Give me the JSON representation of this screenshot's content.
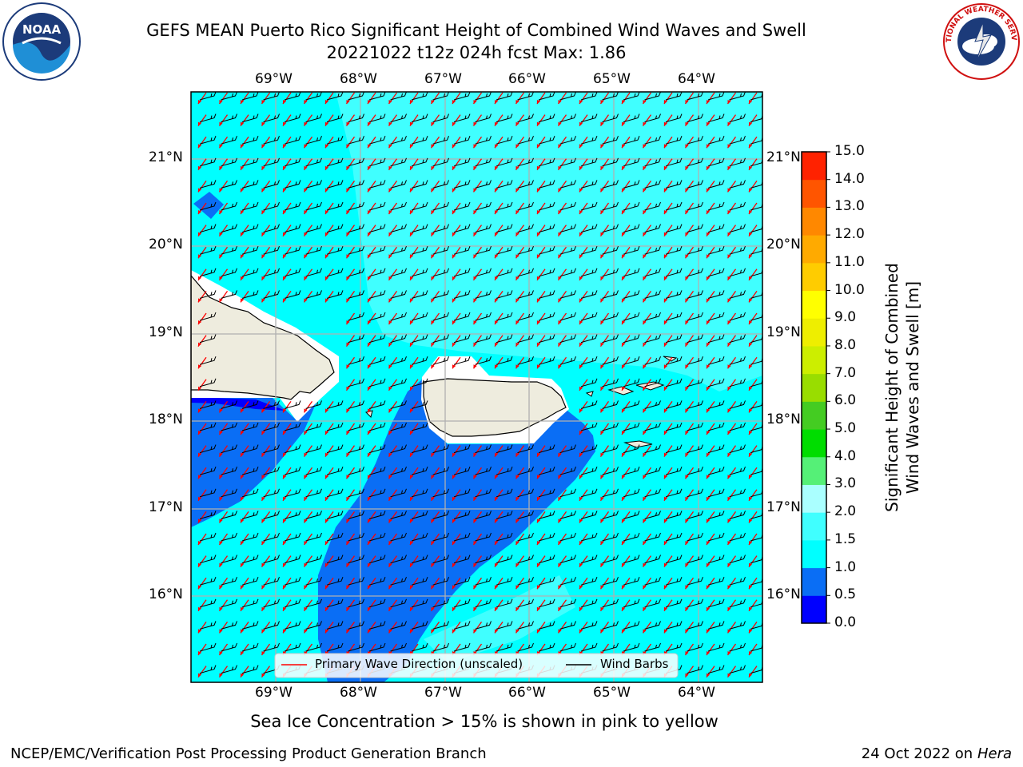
{
  "title_line1": "GEFS MEAN Puerto Rico Significant Height of Combined Wind Waves and Swell",
  "title_line2": "20221022 t12z 024h fcst   Max: 1.86",
  "logos": {
    "left_icon": "noaa-logo",
    "right_icon": "nws-logo",
    "noaa_text": "NOAA",
    "nws_text": "NATIONAL WEATHER SERVICE"
  },
  "lon_labels": [
    "69°W",
    "68°W",
    "67°W",
    "66°W",
    "65°W",
    "64°W"
  ],
  "lat_labels": [
    "21°N",
    "20°N",
    "19°N",
    "18°N",
    "17°N",
    "16°N"
  ],
  "legend": {
    "wave_label": "Primary Wave Direction (unscaled)",
    "barb_label": "Wind Barbs",
    "wave_color": "#ff0000",
    "barb_color": "#000000"
  },
  "colorbar": {
    "label_line1": "Significant Height of Combined",
    "label_line2": "Wind Waves and Swell [m]",
    "ticks": [
      "0.0",
      "0.5",
      "1.0",
      "1.5",
      "2.0",
      "3.0",
      "4.0",
      "5.0",
      "6.0",
      "7.0",
      "8.0",
      "9.0",
      "10.0",
      "11.0",
      "12.0",
      "13.0",
      "14.0",
      "15.0"
    ],
    "colors": [
      "#0000ff",
      "#0a6ef5",
      "#00ffff",
      "#40ffff",
      "#aaffff",
      "#55f077",
      "#00dd00",
      "#44cc22",
      "#99dd00",
      "#ccee00",
      "#eeee00",
      "#ffff00",
      "#ffcc00",
      "#ffaa00",
      "#ff8800",
      "#ff5500",
      "#ff2200"
    ]
  },
  "map_colors": {
    "ocean_cyan": "#00ffff",
    "light_cyan": "#40ffff",
    "blue": "#0a6ef5",
    "deep_blue": "#0000ff",
    "land": "#eeecde",
    "grid": "#b0b0b0"
  },
  "sea_ice_note": "Sea Ice Concentration > 15% is shown in pink to yellow",
  "footer_left": "NCEP/EMC/Verification Post Processing Product Generation Branch",
  "footer_right_prefix": "24 Oct 2022 on ",
  "footer_right_host": "Hera"
}
